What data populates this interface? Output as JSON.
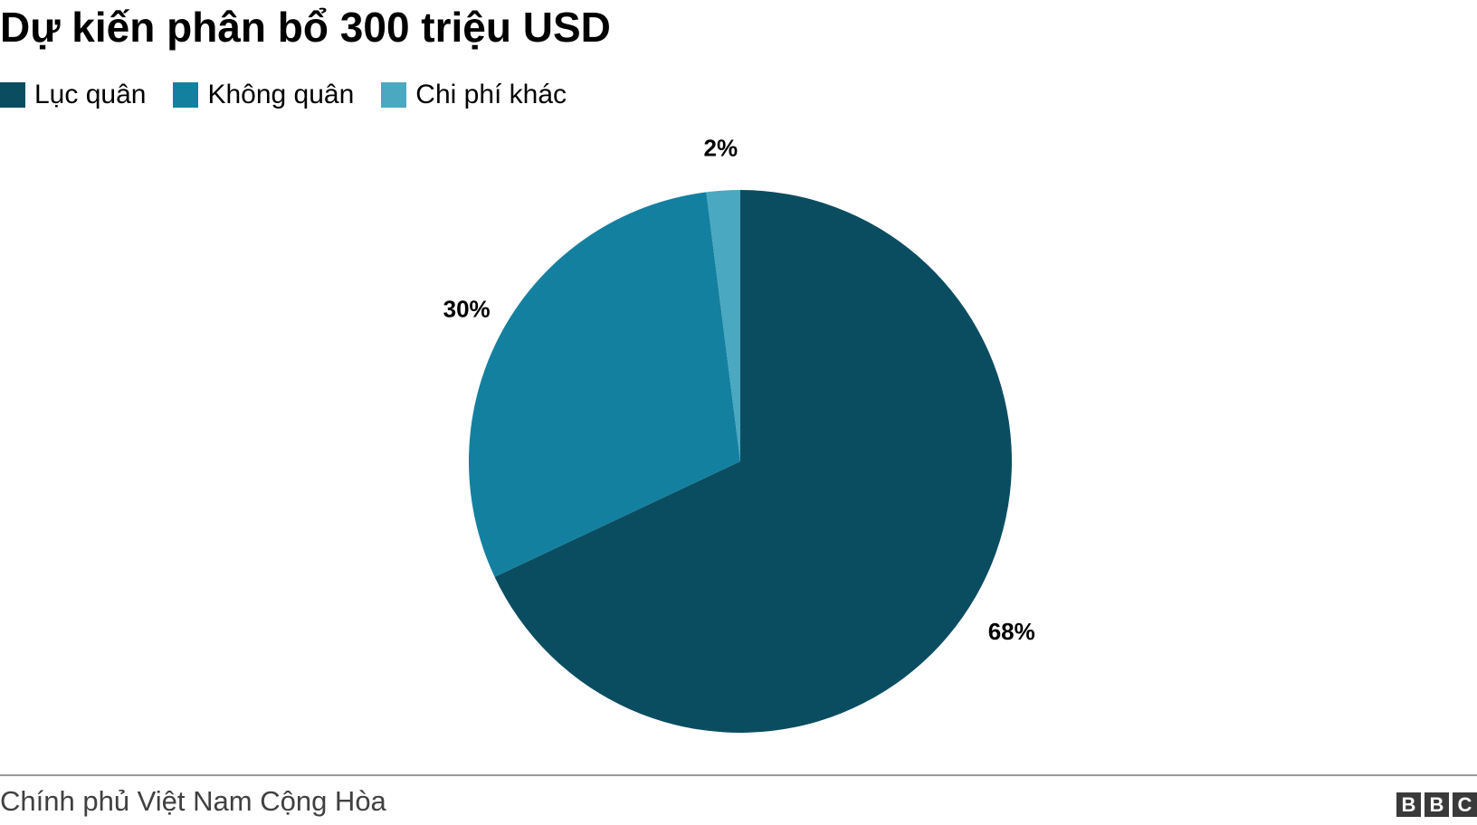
{
  "chart_data": {
    "type": "pie",
    "title": "Dự kiến phân bổ 300 triệu USD",
    "categories": [
      "Lục quân",
      "Không quân",
      "Chi phí khác"
    ],
    "values": [
      68,
      30,
      2
    ],
    "value_labels": [
      "68%",
      "30%",
      "2%"
    ],
    "colors": [
      "#0b4d60",
      "#1480a0",
      "#4aa8c0"
    ],
    "legend_position": "top-left",
    "start_angle": "12 o'clock",
    "direction": "clockwise"
  },
  "footer": {
    "source": "Chính phủ Việt Nam Cộng Hòa",
    "logo_letters": [
      "B",
      "B",
      "C"
    ]
  }
}
